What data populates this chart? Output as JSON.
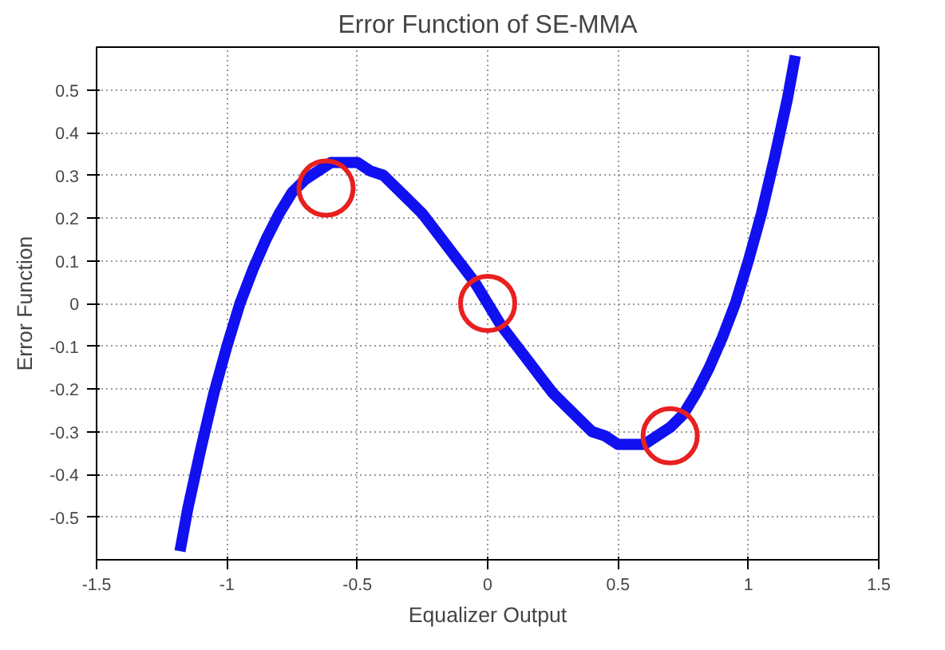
{
  "chart_data": {
    "type": "line",
    "title": "Error Function of SE-MMA",
    "xlabel": "Equalizer Output",
    "ylabel": "Error Function",
    "xlim": [
      -1.5,
      1.5
    ],
    "xticks": [
      -1.5,
      -1,
      -0.5,
      0,
      0.5,
      1,
      1.5
    ],
    "ylim": [
      -0.6,
      0.6
    ],
    "yticks": [
      -0.5,
      -0.4,
      -0.3,
      -0.2,
      -0.1,
      0,
      0.1,
      0.2,
      0.3,
      0.4,
      0.5
    ],
    "grid": true,
    "line_style": "solid",
    "marker": "none",
    "series": [
      {
        "color": "#1010f0",
        "x": [
          -1.18,
          -1.15,
          -1.1,
          -1.05,
          -1.0,
          -0.95,
          -0.9,
          -0.85,
          -0.8,
          -0.75,
          -0.7,
          -0.65,
          -0.6,
          -0.55,
          -0.5,
          -0.45,
          -0.4,
          -0.35,
          -0.3,
          -0.25,
          -0.2,
          -0.15,
          -0.1,
          -0.05,
          0,
          0.05,
          0.1,
          0.15,
          0.2,
          0.25,
          0.3,
          0.35,
          0.4,
          0.45,
          0.5,
          0.55,
          0.6,
          0.65,
          0.7,
          0.75,
          0.8,
          0.85,
          0.9,
          0.95,
          1.0,
          1.05,
          1.1,
          1.15,
          1.18
        ],
        "values": [
          -0.58,
          -0.48,
          -0.34,
          -0.21,
          -0.1,
          0.0,
          0.08,
          0.15,
          0.21,
          0.26,
          0.29,
          0.31,
          0.33,
          0.33,
          0.33,
          0.31,
          0.3,
          0.27,
          0.24,
          0.21,
          0.17,
          0.13,
          0.09,
          0.05,
          0,
          -0.05,
          -0.09,
          -0.13,
          -0.17,
          -0.21,
          -0.24,
          -0.27,
          -0.3,
          -0.31,
          -0.33,
          -0.33,
          -0.33,
          -0.31,
          -0.29,
          -0.26,
          -0.21,
          -0.15,
          -0.08,
          0.0,
          0.1,
          0.21,
          0.34,
          0.48,
          0.58
        ]
      },
      {
        "type": "scatter",
        "color": "#e82020",
        "marker": "circle",
        "x": [
          -0.62,
          0.0,
          0.7
        ],
        "values": [
          0.27,
          0.0,
          -0.31
        ]
      }
    ]
  }
}
